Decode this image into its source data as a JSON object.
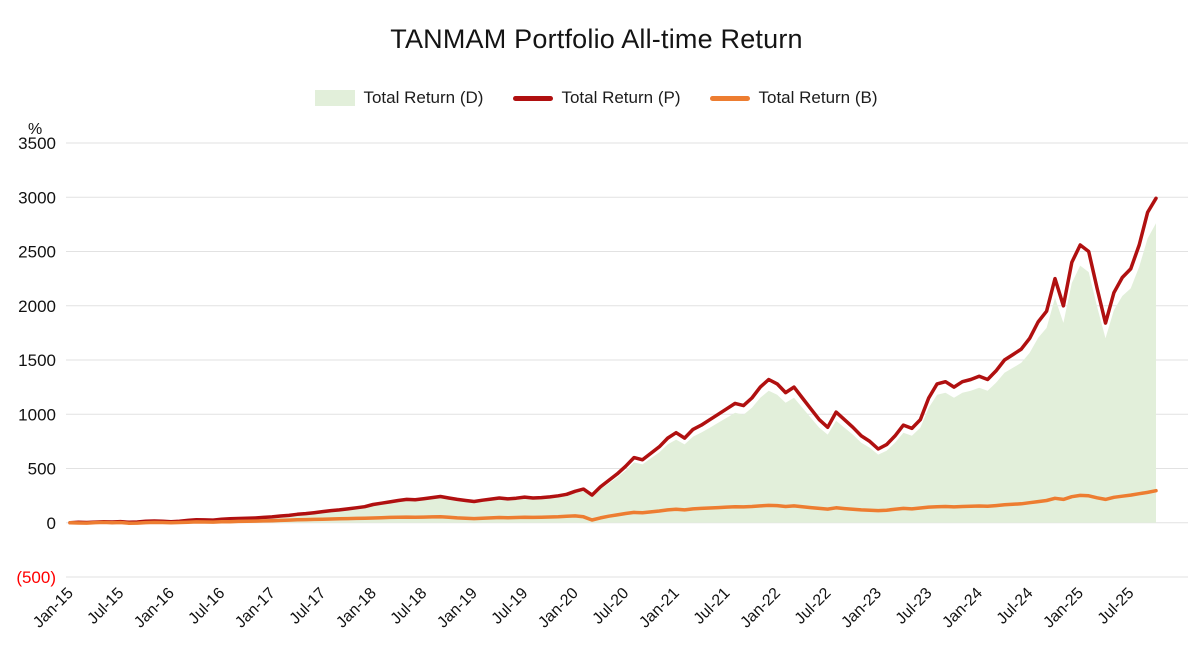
{
  "page": {
    "title": "TANMAM Portfolio All-time Return"
  },
  "legend": {
    "items": [
      {
        "label": "Total Return (D)",
        "swatch": "area"
      },
      {
        "label": "Total Return (P)",
        "swatch": "line"
      },
      {
        "label": "Total Return (B)",
        "swatch": "line"
      }
    ]
  },
  "chart_data": {
    "type": "area",
    "title": "TANMAM Portfolio All-time Return",
    "xlabel": "",
    "ylabel": "%",
    "x_frequency": "monthly",
    "x_range": [
      "Jan-15",
      "Oct-25"
    ],
    "x_tick_interval_months": 6,
    "x_ticks": [
      "Jan-15",
      "Jul-15",
      "Jan-16",
      "Jul-16",
      "Jan-17",
      "Jul-17",
      "Jan-18",
      "Jul-18",
      "Jan-19",
      "Jul-19",
      "Jan-20",
      "Jul-20",
      "Jan-21",
      "Jul-21",
      "Jan-22",
      "Jul-22",
      "Jan-23",
      "Jul-23",
      "Jan-24",
      "Jul-24",
      "Jan-25",
      "Jul-25"
    ],
    "y_axis": {
      "unit_label": "%",
      "min": -500,
      "max": 3500,
      "gridline_color": "#e2e2e2",
      "ticks": [
        {
          "value": 3500,
          "label": "3500",
          "color": "#111111"
        },
        {
          "value": 3000,
          "label": "3000",
          "color": "#111111"
        },
        {
          "value": 2500,
          "label": "2500",
          "color": "#111111"
        },
        {
          "value": 2000,
          "label": "2000",
          "color": "#111111"
        },
        {
          "value": 1500,
          "label": "1500",
          "color": "#111111"
        },
        {
          "value": 1000,
          "label": "1000",
          "color": "#111111"
        },
        {
          "value": 500,
          "label": "500",
          "color": "#111111"
        },
        {
          "value": 0,
          "label": "0",
          "color": "#111111"
        },
        {
          "value": -500,
          "label": "(500)",
          "color": "#ff0000"
        }
      ]
    },
    "series": [
      {
        "name": "Total Return (D)",
        "type": "area",
        "color": "#e2efda",
        "values": [
          0,
          3,
          2,
          5,
          8,
          6,
          10,
          3,
          6,
          12,
          14,
          12,
          8,
          12,
          20,
          26,
          24,
          22,
          30,
          33,
          36,
          38,
          41,
          46,
          50,
          58,
          64,
          73,
          79,
          88,
          97,
          106,
          112,
          121,
          131,
          140,
          158,
          170,
          181,
          193,
          203,
          200,
          210,
          219,
          228,
          215,
          203,
          193,
          184,
          196,
          205,
          215,
          207,
          213,
          222,
          215,
          219,
          224,
          234,
          247,
          272,
          290,
          238,
          308,
          362,
          418,
          482,
          556,
          538,
          594,
          648,
          722,
          766,
          722,
          794,
          832,
          876,
          922,
          968,
          1014,
          996,
          1060,
          1152,
          1216,
          1180,
          1106,
          1152,
          1060,
          968,
          876,
          812,
          940,
          876,
          812,
          738,
          692,
          628,
          664,
          738,
          830,
          802,
          876,
          1060,
          1180,
          1198,
          1152,
          1198,
          1216,
          1244,
          1216,
          1290,
          1382,
          1428,
          1474,
          1566,
          1704,
          1796,
          2072,
          1842,
          2210,
          2370,
          2310,
          1990,
          1700,
          1960,
          2090,
          2160,
          2360,
          2620,
          2760
        ]
      },
      {
        "name": "Total Return (P)",
        "type": "line",
        "color": "#b01010",
        "width": 3.5,
        "values": [
          0,
          4,
          2,
          6,
          9,
          7,
          11,
          4,
          7,
          13,
          16,
          14,
          9,
          14,
          22,
          28,
          26,
          24,
          33,
          36,
          39,
          41,
          44,
          49,
          54,
          62,
          68,
          78,
          84,
          93,
          103,
          112,
          118,
          128,
          138,
          148,
          168,
          180,
          192,
          205,
          215,
          212,
          222,
          232,
          242,
          228,
          215,
          205,
          196,
          208,
          218,
          228,
          220,
          226,
          236,
          228,
          232,
          238,
          248,
          262,
          290,
          310,
          255,
          330,
          390,
          450,
          520,
          600,
          580,
          640,
          700,
          780,
          830,
          780,
          860,
          900,
          950,
          1000,
          1050,
          1100,
          1080,
          1150,
          1250,
          1320,
          1280,
          1200,
          1250,
          1150,
          1050,
          950,
          880,
          1020,
          950,
          880,
          800,
          750,
          680,
          720,
          800,
          900,
          870,
          950,
          1150,
          1280,
          1300,
          1250,
          1300,
          1320,
          1350,
          1320,
          1400,
          1500,
          1550,
          1600,
          1700,
          1850,
          1950,
          2250,
          2000,
          2400,
          2560,
          2500,
          2160,
          1840,
          2120,
          2260,
          2340,
          2560,
          2860,
          2990
        ]
      },
      {
        "name": "Total Return (B)",
        "type": "line",
        "color": "#ed7d31",
        "width": 3.5,
        "values": [
          0,
          -2,
          -3,
          1,
          3,
          0,
          2,
          -4,
          -3,
          1,
          3,
          2,
          0,
          2,
          5,
          8,
          7,
          6,
          9,
          10,
          12,
          13,
          15,
          17,
          19,
          22,
          24,
          27,
          29,
          31,
          33,
          35,
          36,
          38,
          40,
          42,
          44,
          47,
          49,
          51,
          52,
          50,
          52,
          54,
          55,
          50,
          45,
          42,
          38,
          42,
          45,
          48,
          46,
          48,
          51,
          49,
          51,
          53,
          56,
          60,
          63,
          55,
          25,
          45,
          60,
          72,
          85,
          95,
          92,
          100,
          108,
          118,
          124,
          118,
          128,
          132,
          136,
          140,
          144,
          148,
          146,
          150,
          155,
          160,
          158,
          150,
          155,
          148,
          140,
          132,
          126,
          138,
          130,
          124,
          118,
          115,
          112,
          116,
          124,
          132,
          128,
          136,
          144,
          148,
          150,
          146,
          150,
          152,
          154,
          152,
          158,
          165,
          170,
          175,
          185,
          195,
          205,
          225,
          215,
          240,
          252,
          248,
          230,
          215,
          235,
          245,
          255,
          268,
          280,
          295
        ]
      }
    ]
  }
}
